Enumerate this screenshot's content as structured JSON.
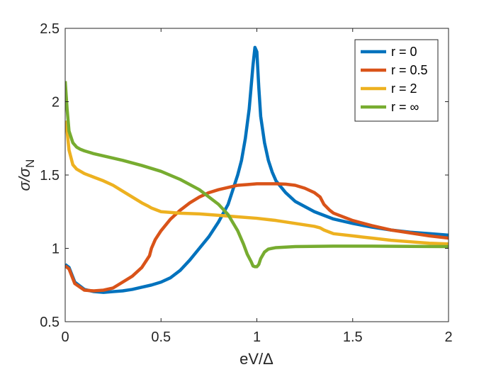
{
  "chart_data": {
    "type": "line",
    "xlabel": "eV/Δ",
    "ylabel": "σ/σ_N",
    "ylabel_main": "σ/σ",
    "ylabel_sub": "N",
    "xlim": [
      0,
      2
    ],
    "ylim": [
      0.5,
      2.5
    ],
    "xticks": [
      0,
      0.5,
      1,
      1.5,
      2
    ],
    "xtick_labels": [
      "0",
      "0.5",
      "1",
      "1.5",
      "2"
    ],
    "yticks": [
      0.5,
      1,
      1.5,
      2,
      2.5
    ],
    "ytick_labels": [
      "0.5",
      "1",
      "1.5",
      "2",
      "2.5"
    ],
    "grid": false,
    "legend_position": "top-right",
    "series": [
      {
        "name": "r = 0",
        "color": "#0072BD",
        "x": [
          0,
          0.02,
          0.05,
          0.1,
          0.15,
          0.2,
          0.25,
          0.3,
          0.35,
          0.4,
          0.45,
          0.5,
          0.55,
          0.6,
          0.65,
          0.7,
          0.75,
          0.8,
          0.85,
          0.9,
          0.92,
          0.94,
          0.96,
          0.97,
          0.98,
          0.99,
          1.0,
          1.01,
          1.02,
          1.04,
          1.06,
          1.08,
          1.1,
          1.15,
          1.2,
          1.3,
          1.4,
          1.5,
          1.6,
          1.7,
          1.8,
          1.9,
          2.0
        ],
        "y": [
          0.89,
          0.87,
          0.77,
          0.72,
          0.705,
          0.7,
          0.705,
          0.71,
          0.72,
          0.735,
          0.75,
          0.77,
          0.8,
          0.85,
          0.92,
          1.0,
          1.08,
          1.18,
          1.3,
          1.5,
          1.6,
          1.75,
          1.95,
          2.1,
          2.25,
          2.37,
          2.34,
          2.1,
          1.9,
          1.72,
          1.6,
          1.52,
          1.46,
          1.38,
          1.32,
          1.25,
          1.2,
          1.17,
          1.145,
          1.125,
          1.11,
          1.1,
          1.09
        ]
      },
      {
        "name": "r = 0.5",
        "color": "#D95319",
        "x": [
          0,
          0.02,
          0.05,
          0.1,
          0.15,
          0.2,
          0.25,
          0.3,
          0.35,
          0.4,
          0.44,
          0.45,
          0.47,
          0.5,
          0.55,
          0.6,
          0.65,
          0.7,
          0.75,
          0.8,
          0.85,
          0.9,
          0.95,
          1.0,
          1.05,
          1.1,
          1.15,
          1.2,
          1.25,
          1.3,
          1.33,
          1.35,
          1.38,
          1.4,
          1.5,
          1.6,
          1.7,
          1.8,
          1.9,
          2.0
        ],
        "y": [
          0.88,
          0.86,
          0.76,
          0.715,
          0.71,
          0.715,
          0.73,
          0.77,
          0.81,
          0.87,
          0.95,
          1.0,
          1.06,
          1.12,
          1.2,
          1.26,
          1.31,
          1.35,
          1.38,
          1.4,
          1.415,
          1.43,
          1.435,
          1.44,
          1.44,
          1.44,
          1.438,
          1.43,
          1.41,
          1.38,
          1.35,
          1.3,
          1.26,
          1.24,
          1.19,
          1.155,
          1.125,
          1.105,
          1.085,
          1.07
        ]
      },
      {
        "name": "r = 2",
        "color": "#EDB120",
        "x": [
          0,
          0.01,
          0.02,
          0.04,
          0.06,
          0.08,
          0.1,
          0.15,
          0.2,
          0.25,
          0.3,
          0.35,
          0.4,
          0.43,
          0.45,
          0.47,
          0.5,
          0.6,
          0.7,
          0.8,
          0.9,
          1.0,
          1.1,
          1.2,
          1.3,
          1.33,
          1.35,
          1.38,
          1.4,
          1.5,
          1.6,
          1.7,
          1.8,
          1.9,
          2.0
        ],
        "y": [
          1.87,
          1.8,
          1.67,
          1.57,
          1.54,
          1.525,
          1.51,
          1.485,
          1.46,
          1.43,
          1.39,
          1.35,
          1.31,
          1.29,
          1.275,
          1.265,
          1.25,
          1.24,
          1.235,
          1.225,
          1.215,
          1.205,
          1.19,
          1.17,
          1.15,
          1.14,
          1.125,
          1.11,
          1.1,
          1.085,
          1.07,
          1.055,
          1.045,
          1.035,
          1.03
        ]
      },
      {
        "name": "r = ∞",
        "color": "#77AC30",
        "x": [
          0,
          0.01,
          0.02,
          0.04,
          0.06,
          0.08,
          0.1,
          0.15,
          0.2,
          0.3,
          0.4,
          0.5,
          0.6,
          0.7,
          0.8,
          0.85,
          0.9,
          0.93,
          0.95,
          0.97,
          0.98,
          0.99,
          1.0,
          1.01,
          1.02,
          1.04,
          1.06,
          1.1,
          1.2,
          1.4,
          1.6,
          1.8,
          2.0
        ],
        "y": [
          2.14,
          1.95,
          1.8,
          1.72,
          1.69,
          1.675,
          1.665,
          1.645,
          1.63,
          1.6,
          1.565,
          1.525,
          1.47,
          1.4,
          1.3,
          1.23,
          1.12,
          1.03,
          0.96,
          0.91,
          0.88,
          0.875,
          0.875,
          0.89,
          0.93,
          0.975,
          0.995,
          1.005,
          1.012,
          1.015,
          1.015,
          1.013,
          1.012
        ]
      }
    ]
  }
}
